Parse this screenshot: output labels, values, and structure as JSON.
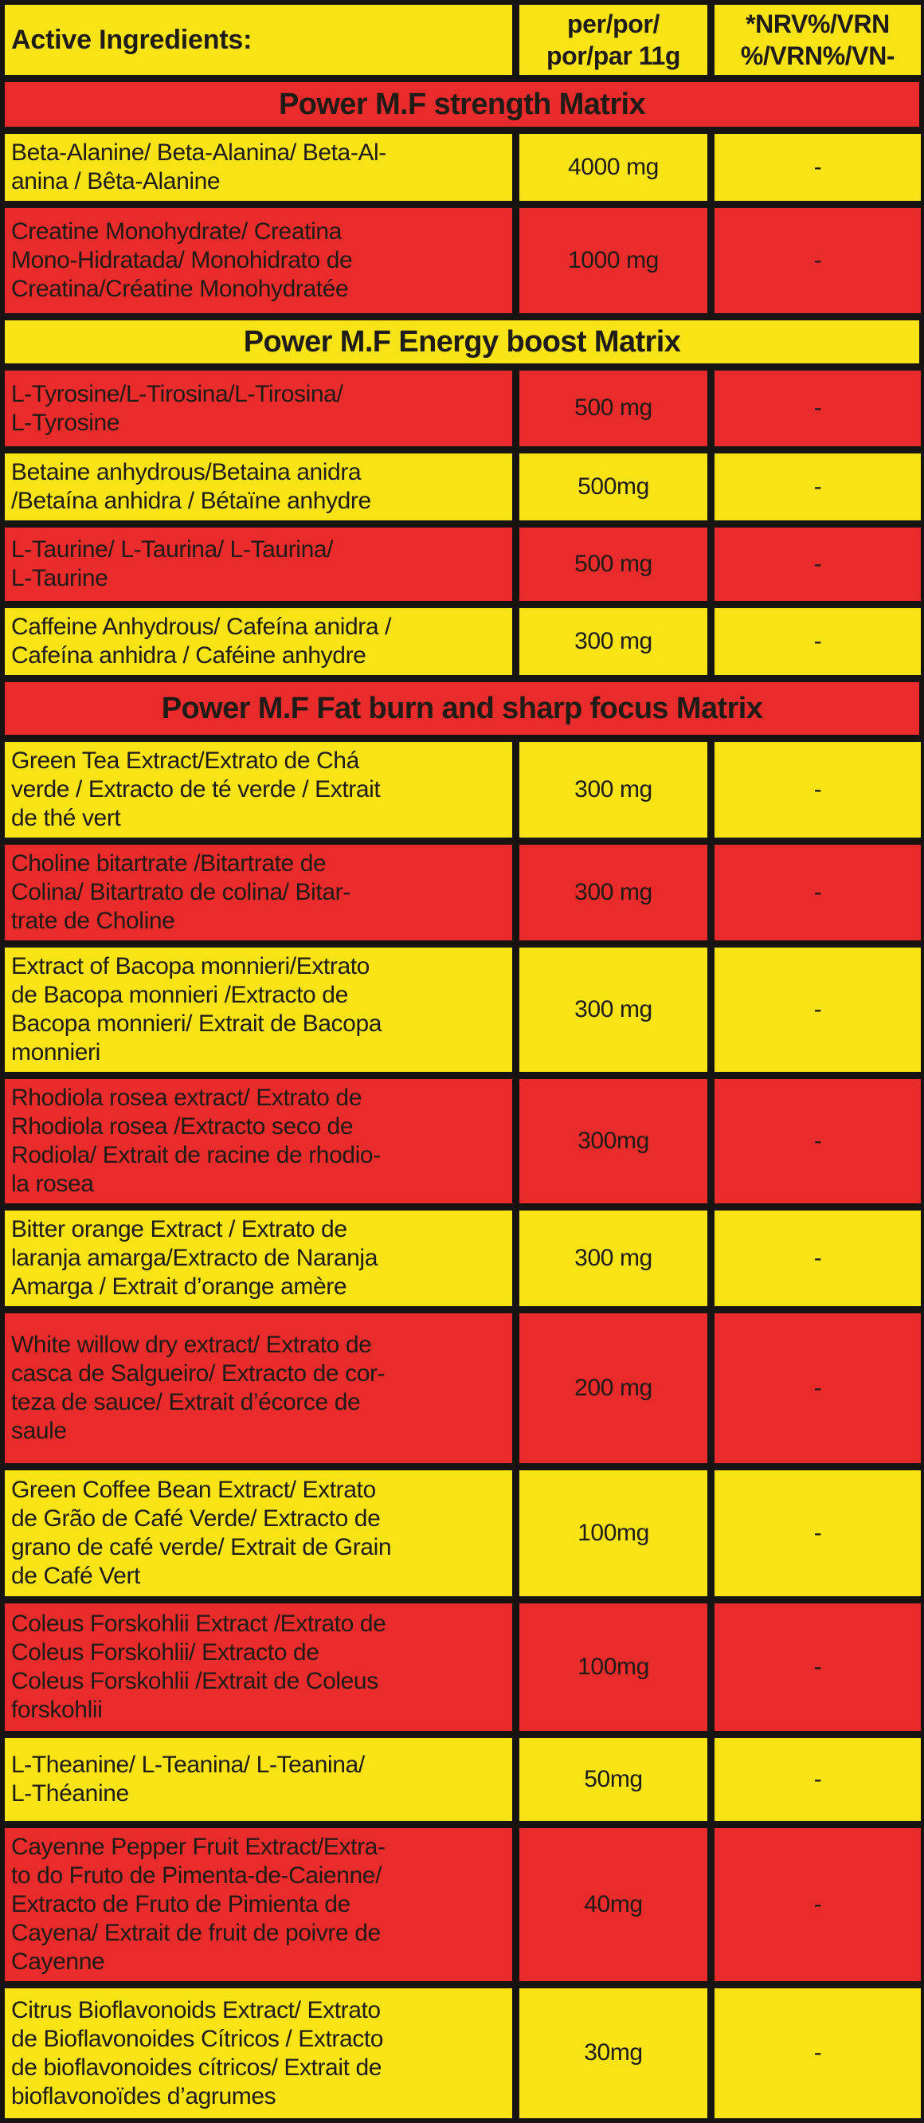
{
  "title": "Active ingredients panel",
  "palette": {
    "yellow": "#F8E414",
    "red": "#E92B2B",
    "border": "#161310",
    "text": "#1F1B17"
  },
  "header": {
    "ingredients": "Active Ingredients:",
    "per_serving": "per/por/\npor/par 11g",
    "nrv": "*NRV%/VRN\n%/VRN%/VN-"
  },
  "sections": [
    {
      "title": "Power M.F strength Matrix",
      "bg": "red",
      "rows": [
        {
          "name": "Beta-Alanine/ Beta-Alanina/ Beta-Al-\nanina / Bêta-Alanine",
          "amount": "4000 mg",
          "nrv": "-",
          "bg": "yellow",
          "min_h": 78
        },
        {
          "name": "Creatine Monohydrate/ Creatina\nMono-Hidratada/ Monohidrato de\nCreatina/Créatine Monohydratée",
          "amount": "1000 mg",
          "nrv": "-",
          "bg": "red",
          "min_h": 132
        }
      ]
    },
    {
      "title": "Power M.F Energy boost Matrix",
      "bg": "yellow",
      "rows": [
        {
          "name": "L-Tyrosine/L-Tirosina/L-Tirosina/\nL-Tyrosine",
          "amount": "500 mg",
          "nrv": "-",
          "bg": "red",
          "min_h": 95
        },
        {
          "name": "Betaine anhydrous/Betaina anidra\n/Betaína anhidra / Bétaïne anhydre",
          "amount": "500mg",
          "nrv": "-",
          "bg": "yellow",
          "min_h": 81
        },
        {
          "name": "L-Taurine/ L-Taurina/ L-Taurina/\nL-Taurine",
          "amount": "500 mg",
          "nrv": "-",
          "bg": "red",
          "min_h": 92
        },
        {
          "name": "Caffeine Anhydrous/ Cafeína anidra /\nCafeína anhidra / Caféine anhydre",
          "amount": "300 mg",
          "nrv": "-",
          "bg": "yellow",
          "min_h": 76
        }
      ]
    },
    {
      "title": "Power M.F Fat burn and sharp focus Matrix",
      "bg": "red",
      "rows": [
        {
          "name": "Green Tea Extract/Extrato de Chá\nverde / Extracto de té verde / Extrait\nde thé vert",
          "amount": "300 mg",
          "nrv": "-",
          "bg": "yellow",
          "min_h": 119
        },
        {
          "name": "Choline bitartrate /Bitartrate de\nColina/ Bitartrato de colina/ Bitar-\ntrate de Choline",
          "amount": "300 mg",
          "nrv": "-",
          "bg": "red",
          "min_h": 119
        },
        {
          "name": "Extract of Bacopa monnieri/Extrato\nde Bacopa monnieri /Extracto de\nBacopa monnieri/ Extrait de Bacopa\nmonnieri",
          "amount": "300 mg",
          "nrv": "-",
          "bg": "yellow",
          "min_h": 150
        },
        {
          "name": "Rhodiola rosea extract/ Extrato de\nRhodiola rosea /Extracto seco de\nRodiola/ Extrait de racine de rhodio-\nla rosea",
          "amount": "300mg",
          "nrv": "-",
          "bg": "red",
          "min_h": 150
        },
        {
          "name": "Bitter orange Extract / Extrato de\nlaranja amarga/Extracto de Naranja\nAmarga / Extrait d’orange amère",
          "amount": "300 mg",
          "nrv": "-",
          "bg": "yellow",
          "min_h": 113
        },
        {
          "name": "White willow dry extract/ Extrato de\ncasca de Salgueiro/ Extracto de cor-\nteza de sauce/ Extrait d’écorce de\nsaule",
          "amount": "200 mg",
          "nrv": "-",
          "bg": "red",
          "min_h": 188
        },
        {
          "name": "Green Coffee Bean Extract/ Extrato\nde Grão de Café Verde/ Extracto de\ngrano de café verde/ Extrait de Grain\nde Café Vert",
          "amount": "100mg",
          "nrv": "-",
          "bg": "yellow",
          "min_h": 158
        },
        {
          "name": "Coleus Forskohlii Extract /Extrato de\nColeus Forskohlii/ Extracto de\nColeus Forskohlii /Extrait de Coleus\nforskohlii",
          "amount": "100mg",
          "nrv": "-",
          "bg": "red",
          "min_h": 160
        },
        {
          "name": "L-Theanine/ L-Teanina/ L-Teanina/\nL-Théanine",
          "amount": "50mg",
          "nrv": "-",
          "bg": "yellow",
          "min_h": 104
        },
        {
          "name": "Cayenne Pepper Fruit Extract/Extra-\nto do Fruto de Pimenta-de-Caienne/\nExtracto de Fruto de Pimienta de\nCayena/ Extrait de fruit de poivre de\nCayenne",
          "amount": "40mg",
          "nrv": "-",
          "bg": "red",
          "min_h": 192
        },
        {
          "name": "Citrus Bioflavonoids Extract/ Extrato\nde Bioflavonoides Cítricos / Extracto\nde bioflavonoides cítricos/ Extrait de\nbioflavonoïdes d’agrumes",
          "amount": "30mg",
          "nrv": "-",
          "bg": "yellow",
          "min_h": 163
        }
      ]
    }
  ]
}
